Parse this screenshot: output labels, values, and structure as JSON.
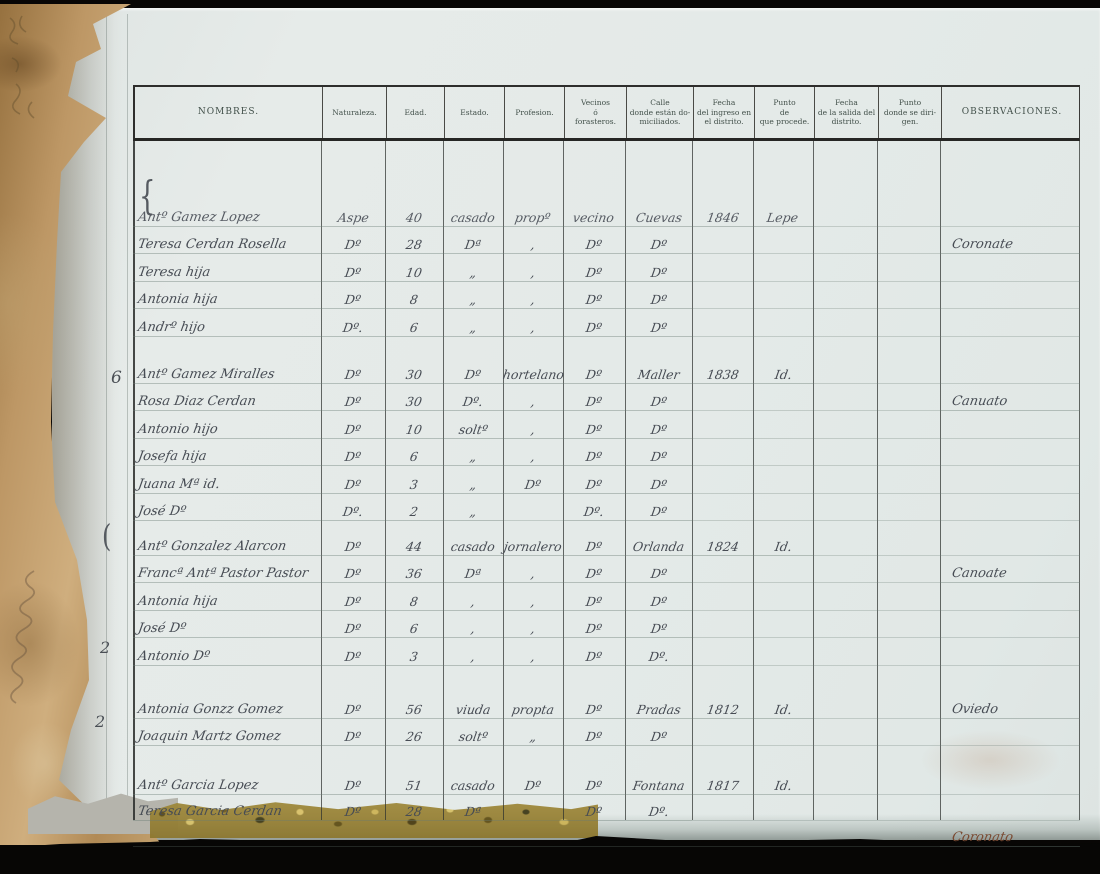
{
  "table": {
    "header_columns": [
      "NOMBRES.",
      "Naturaleza.",
      "Edad.",
      "Estado.",
      "Profesion.",
      "Vecinos\nó\nforasteros.",
      "Calle\ndonde están do-\nmiciliados.",
      "Fecha\ndel ingreso en\nel distrito.",
      "Punto\nde\nque procede.",
      "Fecha\nde la salida del\ndistrito.",
      "Punto\ndonde se diri-\ngen.",
      "OBSERVACIONES."
    ],
    "groups": [
      {
        "mark": "{",
        "rows": [
          [
            "Antº Gamez Lopez",
            "Aspe",
            "40",
            "casado",
            "propº",
            "vecino",
            "Cuevas",
            "1846",
            "Lepe",
            "",
            "",
            ""
          ],
          [
            "Teresa Cerdan Rosella",
            "Dº",
            "28",
            "Dª",
            ",",
            "Dº",
            "Dº",
            "",
            "",
            "",
            "",
            "Coronate"
          ],
          [
            "Teresa hija",
            "Dº",
            "10",
            "„",
            ",",
            "Dº",
            "Dº",
            "",
            "",
            "",
            "",
            ""
          ],
          [
            "Antonia hija",
            "Dº",
            "8",
            "„",
            ",",
            "Dº",
            "Dº",
            "",
            "",
            "",
            "",
            ""
          ],
          [
            "Andrº hijo",
            "Dº.",
            "6",
            "„",
            ",",
            "Dº",
            "Dº",
            "",
            "",
            "",
            "",
            ""
          ]
        ]
      },
      {
        "mark": "6",
        "rows": [
          [
            "Antº Gamez Miralles",
            "Dº",
            "30",
            "Dº",
            "hortelano",
            "Dº",
            "Maller",
            "1838",
            "Id.",
            "",
            "",
            ""
          ],
          [
            "Rosa Diaz Cerdan",
            "Dº",
            "30",
            "Dº.",
            ",",
            "Dº",
            "Dº",
            "",
            "",
            "",
            "",
            "Canuato"
          ],
          [
            "Antonio hijo",
            "Dº",
            "10",
            "soltº",
            ",",
            "Dº",
            "Dº",
            "",
            "",
            "",
            "",
            ""
          ],
          [
            "Josefa hija",
            "Dº",
            "6",
            "„",
            ",",
            "Dº",
            "Dº",
            "",
            "",
            "",
            "",
            ""
          ],
          [
            "Juana Mª id.",
            "Dº",
            "3",
            "„",
            "Dº",
            "Dº",
            "Dº",
            "",
            "",
            "",
            "",
            ""
          ],
          [
            "José Dº",
            "Dº.",
            "2",
            "„",
            "",
            "Dº.",
            "Dº",
            "",
            "",
            "",
            "",
            ""
          ]
        ]
      },
      {
        "mark": "(",
        "rows": [
          [
            "Antº Gonzalez Alarcon",
            "Dº",
            "44",
            "casado",
            "jornalero",
            "Dº",
            "Orlanda",
            "1824",
            "Id.",
            "",
            "",
            ""
          ],
          [
            "Francª Antª Pastor Pastor",
            "Dº",
            "36",
            "Dª",
            ",",
            "Dº",
            "Dº",
            "",
            "",
            "",
            "",
            "Canoate"
          ],
          [
            "Antonia hija",
            "Dº",
            "8",
            ",",
            ",",
            "Dº",
            "Dº",
            "",
            "",
            "",
            "",
            ""
          ],
          [
            "José Dº",
            "Dº",
            "6",
            ",",
            ",",
            "Dº",
            "Dº",
            "",
            "",
            "",
            "",
            ""
          ],
          [
            "Antonio Dº",
            "Dº",
            "3",
            ",",
            ",",
            "Dº",
            "Dº.",
            "",
            "",
            "",
            "",
            ""
          ]
        ]
      },
      {
        "mark": "2",
        "rows": [
          [
            "Antonia Gonzz Gomez",
            "Dº",
            "56",
            "viuda",
            "propta",
            "Dº",
            "Pradas",
            "1812",
            "Id.",
            "",
            "",
            "Oviedo"
          ],
          [
            "Joaquin Martz Gomez",
            "Dº",
            "26",
            "soltº",
            "„",
            "Dº",
            "Dº",
            "",
            "",
            "",
            "",
            ""
          ]
        ]
      },
      {
        "mark": "2",
        "rows": [
          [
            "Antº Garcia Lopez",
            "Dº",
            "51",
            "casado",
            "Dº",
            "Dº",
            "Fontana",
            "1817",
            "Id.",
            "",
            "",
            ""
          ],
          [
            "Teresa Garcia Cerdan",
            "Dº",
            "28",
            "Dª",
            "",
            "Dº",
            "Dº.",
            "",
            "",
            "",
            "",
            ""
          ],
          [
            "",
            "",
            "",
            "",
            "",
            "",
            "",
            "",
            "",
            "",
            "",
            "Coronato"
          ]
        ]
      }
    ]
  },
  "ghosts": {
    "nombres_cell": "OBSERVACIONES.",
    "observaciones_cell": "NOMBRES."
  },
  "colors": {
    "paper": "#e4eae8",
    "printed_ink": "#42504a",
    "handwriting_ink": "#474c54",
    "binding_brown": "#bd9765",
    "stained_ink": "#7a4a32",
    "background": "#080605"
  }
}
